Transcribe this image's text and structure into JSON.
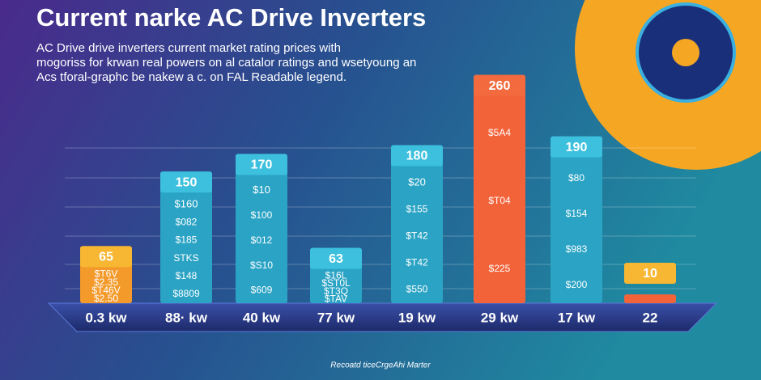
{
  "chart_data": {
    "type": "bar",
    "title": "Current narke AC Drive Inverters",
    "subtitle": [
      "AC Drive drive inverters current market rating prices with",
      "mogoriss for krwan real powers on al catalor ratings and wsetyoung an",
      "Acs tforal-graphc be nakew a c. on FAL Readable legend."
    ],
    "categories": [
      "0.3 kw",
      "88· kw",
      "40 kw",
      "77 kw",
      "19 kw",
      "29 kw",
      "17 kw",
      "22"
    ],
    "values": [
      65,
      150,
      170,
      63,
      180,
      260,
      190,
      10
    ],
    "colors": [
      "#f39a2b",
      "#2aa3c4",
      "#2aa3c4",
      "#2aa3c4",
      "#2aa3c4",
      "#f3633a",
      "#2aa3c4",
      "#f3633a"
    ],
    "bar_labels": [
      [
        "$T6V",
        "$2.35",
        "$T46V",
        "$2.50"
      ],
      [
        "$160",
        "$082",
        "$185",
        "STKS",
        "$148",
        "$8809"
      ],
      [
        "$10",
        "$100",
        "$012",
        "$S10",
        "$609"
      ],
      [
        "$16L",
        "$ST0L",
        "$T3Q",
        "$TAV"
      ],
      [
        "$20",
        "$155",
        "$T42",
        "$T42",
        "$550"
      ],
      [
        "$5A4",
        "$T04",
        "$225"
      ],
      [
        "$80",
        "$154",
        "$983",
        "$200"
      ],
      []
    ],
    "ylim": [
      0,
      290
    ],
    "footer": "Recoatd ticeCrgeAhi Marter"
  }
}
